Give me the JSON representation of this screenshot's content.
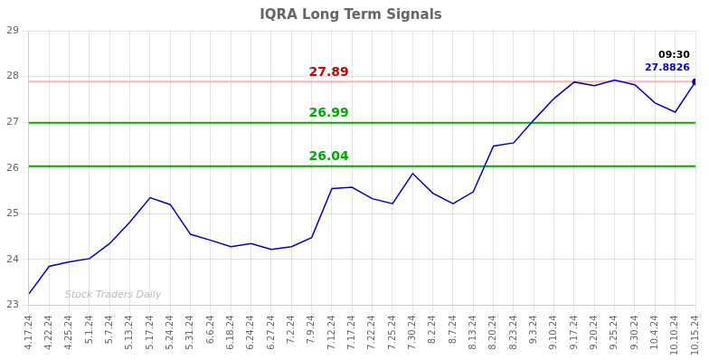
{
  "chart_data": {
    "type": "line",
    "title": "IQRA Long Term Signals",
    "categories": [
      "4.17.24",
      "4.22.24",
      "4.25.24",
      "5.1.24",
      "5.7.24",
      "5.13.24",
      "5.17.24",
      "5.24.24",
      "5.31.24",
      "6.6.24",
      "6.18.24",
      "6.24.24",
      "6.27.24",
      "7.2.24",
      "7.9.24",
      "7.12.24",
      "7.17.24",
      "7.22.24",
      "7.25.24",
      "7.30.24",
      "8.2.24",
      "8.7.24",
      "8.13.24",
      "8.20.24",
      "8.23.24",
      "9.3.24",
      "9.10.24",
      "9.17.24",
      "9.20.24",
      "9.25.24",
      "9.30.24",
      "10.4.24",
      "10.10.24",
      "10.15.24"
    ],
    "series": [
      {
        "color": "#0000cc",
        "marker": "last",
        "values": [
          23.25,
          23.85,
          23.95,
          24.02,
          24.35,
          24.82,
          25.35,
          25.2,
          24.55,
          24.42,
          24.28,
          24.35,
          24.22,
          24.28,
          24.48,
          25.55,
          25.58,
          25.33,
          25.22,
          25.88,
          25.45,
          25.22,
          25.48,
          26.48,
          26.55,
          27.05,
          27.52,
          27.88,
          27.8,
          27.92,
          27.82,
          27.42,
          27.22,
          27.8826
        ]
      }
    ],
    "ylim": [
      23,
      29
    ],
    "yticks": [
      23,
      24,
      25,
      26,
      27,
      28,
      29
    ],
    "grid": true,
    "annotations": [
      {
        "kind": "hline",
        "y": 27.89,
        "text": "27.89",
        "line_color": "#ffb3b3",
        "color": "#cc0000"
      },
      {
        "kind": "hline",
        "y": 26.99,
        "text": "26.99",
        "line_color": "#00aa00",
        "color": "#00aa00"
      },
      {
        "kind": "hline",
        "y": 26.04,
        "text": "26.04",
        "line_color": "#00aa00",
        "color": "#00aa00"
      },
      {
        "kind": "point_label",
        "x": "10.15.24",
        "y": 27.8826,
        "lines": [
          {
            "text": "09:30",
            "color": "#000000"
          },
          {
            "text": "27.8826",
            "color": "#0000cc"
          }
        ]
      },
      {
        "kind": "watermark",
        "text": "Stock Traders Daily",
        "color": "#bbbbbb"
      }
    ]
  }
}
